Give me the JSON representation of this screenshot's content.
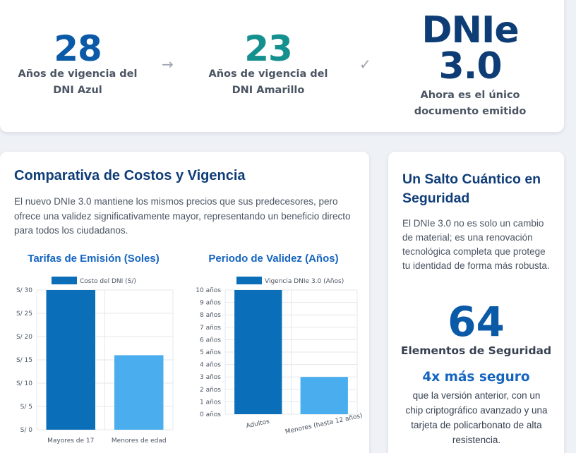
{
  "stats": [
    {
      "number": "28",
      "label": "Años de vigencia del DNI Azul"
    },
    {
      "number": "23",
      "label": "Años de vigencia del DNI Amarillo"
    },
    {
      "number": "DNIe 3.0",
      "label": "Ahora es el único documento emitido"
    }
  ],
  "separators": {
    "arrow": "→",
    "check": "✓"
  },
  "comparison": {
    "title": "Comparativa de Costos y Vigencia",
    "description": "El nuevo DNIe 3.0 mantiene los mismos precios que sus predecesores, pero ofrece una validez significativamente mayor, representando un beneficio directo para todos los ciudadanos."
  },
  "security": {
    "title": "Un Salto Cuántico en Seguridad",
    "description": "El DNIe 3.0 no es solo un cambio de material; es una renovación tecnológica completa que protege tu identidad de forma más robusta.",
    "number": "64",
    "number_label": "Elementos de Seguridad",
    "safer_title": "4x más seguro",
    "safer_description": "que la versión anterior, con un chip criptográfico avanzado y una tarjeta de policarbonato de alta resistencia."
  },
  "colors": {
    "bar_dark": "#0a6fb8",
    "bar_light": "#4aaeee",
    "grid": "#e5e7eb"
  },
  "chart_data": [
    {
      "type": "bar",
      "title": "Tarifas de Emisión (Soles)",
      "categories": [
        "Mayores de 17",
        "Menores de edad"
      ],
      "series": [
        {
          "name": "Costo del DNI (S/)",
          "values": [
            30,
            16
          ]
        }
      ],
      "ylim": [
        0,
        30
      ],
      "yticks": [
        0,
        5,
        10,
        15,
        20,
        25,
        30
      ],
      "ytick_labels": [
        "S/ 0",
        "S/ 5",
        "S/ 10",
        "S/ 15",
        "S/ 20",
        "S/ 25",
        "S/ 30"
      ],
      "legend": "top-center",
      "grid": true
    },
    {
      "type": "bar",
      "title": "Periodo de Validez (Años)",
      "categories": [
        "Adultos",
        "Menores (hasta 12 años)"
      ],
      "series": [
        {
          "name": "Vigencia DNIe 3.0 (Años)",
          "values": [
            10,
            3
          ]
        }
      ],
      "ylim": [
        0,
        10
      ],
      "yticks": [
        0,
        1,
        2,
        3,
        4,
        5,
        6,
        7,
        8,
        9,
        10
      ],
      "ytick_labels": [
        "0 años",
        "1 años",
        "2 años",
        "3 años",
        "4 años",
        "5 años",
        "6 años",
        "7 años",
        "8 años",
        "9 años",
        "10 años"
      ],
      "legend": "top-center",
      "grid": true
    }
  ]
}
